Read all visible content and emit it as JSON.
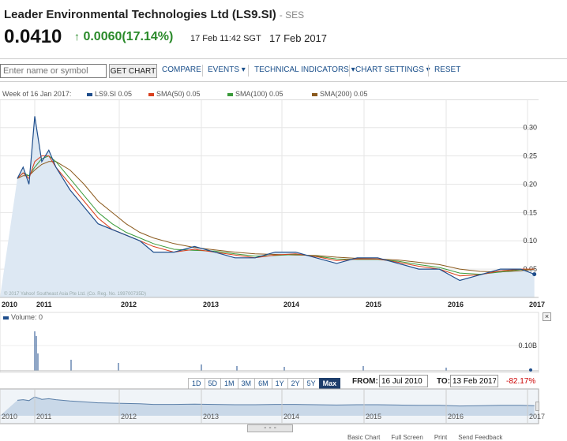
{
  "header": {
    "title": "Leader Environmental Technologies Ltd (LS9.SI)",
    "exchange": "- SES",
    "price": "0.0410",
    "change": "0.0060(17.14%)",
    "time": "17 Feb 11:42 SGT",
    "date": "17 Feb 2017"
  },
  "toolbar": {
    "placeholder": "Enter name or symbol",
    "get_chart": "GET CHART",
    "compare": "COMPARE",
    "events": "EVENTS",
    "technical": "TECHNICAL INDICATORS",
    "settings": "CHART SETTINGS",
    "reset": "RESET"
  },
  "legend": {
    "week": "Week of 16 Jan 2017:",
    "items": [
      {
        "label": "LS9.SI 0.05",
        "color": "#1f4e8c"
      },
      {
        "label": "SMA(50) 0.05",
        "color": "#d9401e"
      },
      {
        "label": "SMA(100) 0.05",
        "color": "#3a9a3a"
      },
      {
        "label": "SMA(200) 0.05",
        "color": "#8b5a1e"
      }
    ]
  },
  "volume": {
    "label": "Volume: 0",
    "axis": "0.10B"
  },
  "ranges": [
    "1D",
    "5D",
    "1M",
    "3M",
    "6M",
    "1Y",
    "2Y",
    "5Y",
    "Max"
  ],
  "active_range": "Max",
  "from_label": "FROM:",
  "from_value": "16 Jul 2010",
  "to_label": "TO:",
  "to_value": "13 Feb 2017",
  "change_pct": "-82.17%",
  "watermark": "© 2017 Yahoo! Southeast Asia Pte Ltd. (Co. Reg. No. 199700735D)",
  "footer": [
    "Basic Chart",
    "Full Screen",
    "Print",
    "Send Feedback"
  ],
  "chart_data": {
    "type": "line",
    "x": [
      "2010-07",
      "2010-09",
      "2010-11",
      "2011-01",
      "2011-02",
      "2011-03",
      "2011-04",
      "2011-06",
      "2011-08",
      "2011-10",
      "2011-12",
      "2012-02",
      "2012-04",
      "2012-06",
      "2012-09",
      "2012-12",
      "2013-03",
      "2013-06",
      "2013-09",
      "2013-12",
      "2014-03",
      "2014-06",
      "2014-09",
      "2014-12",
      "2015-03",
      "2015-06",
      "2015-09",
      "2015-12",
      "2016-03",
      "2016-06",
      "2016-09",
      "2016-12",
      "2017-02"
    ],
    "series": [
      {
        "name": "LS9.SI",
        "values": [
          0.21,
          0.23,
          0.2,
          0.32,
          0.24,
          0.26,
          0.23,
          0.19,
          0.16,
          0.13,
          0.12,
          0.11,
          0.1,
          0.08,
          0.08,
          0.09,
          0.08,
          0.07,
          0.07,
          0.08,
          0.08,
          0.07,
          0.06,
          0.07,
          0.07,
          0.06,
          0.05,
          0.05,
          0.03,
          0.04,
          0.05,
          0.05,
          0.041
        ]
      },
      {
        "name": "SMA(50)",
        "values": [
          0.21,
          0.22,
          0.21,
          0.24,
          0.25,
          0.25,
          0.23,
          0.2,
          0.17,
          0.14,
          0.12,
          0.11,
          0.1,
          0.09,
          0.08,
          0.085,
          0.08,
          0.075,
          0.07,
          0.075,
          0.077,
          0.072,
          0.065,
          0.068,
          0.068,
          0.062,
          0.055,
          0.05,
          0.038,
          0.04,
          0.047,
          0.05,
          0.05
        ]
      },
      {
        "name": "SMA(100)",
        "values": [
          0.21,
          0.22,
          0.215,
          0.23,
          0.245,
          0.25,
          0.24,
          0.21,
          0.18,
          0.15,
          0.13,
          0.115,
          0.105,
          0.095,
          0.085,
          0.083,
          0.082,
          0.077,
          0.073,
          0.074,
          0.076,
          0.073,
          0.068,
          0.067,
          0.067,
          0.064,
          0.058,
          0.053,
          0.043,
          0.041,
          0.045,
          0.049,
          0.05
        ]
      },
      {
        "name": "SMA(200)",
        "values": [
          0.21,
          0.215,
          0.215,
          0.225,
          0.235,
          0.24,
          0.24,
          0.225,
          0.2,
          0.17,
          0.15,
          0.13,
          0.115,
          0.105,
          0.095,
          0.088,
          0.084,
          0.08,
          0.077,
          0.076,
          0.075,
          0.074,
          0.071,
          0.069,
          0.068,
          0.066,
          0.062,
          0.058,
          0.05,
          0.046,
          0.045,
          0.047,
          0.05
        ]
      }
    ],
    "x_ticks": [
      "2010",
      "2011",
      "2012",
      "2013",
      "2014",
      "2015",
      "2016",
      "2017"
    ],
    "y_ticks": [
      "0.05",
      "0.10",
      "0.15",
      "0.20",
      "0.25",
      "0.30"
    ],
    "ylim": [
      0,
      0.34
    ],
    "grid": true,
    "legend_placement": "top-left"
  }
}
